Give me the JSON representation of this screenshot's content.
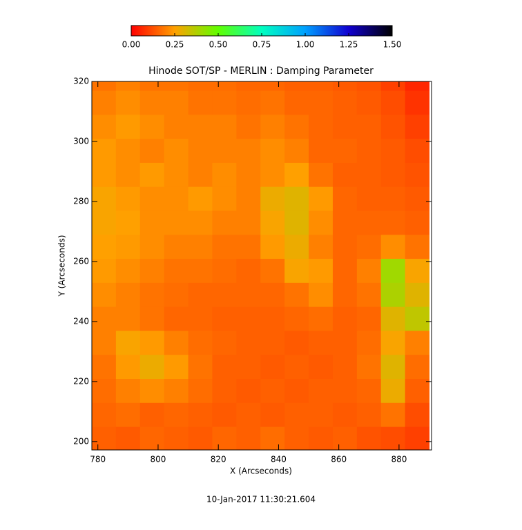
{
  "chart_data": {
    "type": "heatmap",
    "title": "Hinode SOT/SP - MERLIN : Damping Parameter",
    "xlabel": "X (Arcseconds)",
    "ylabel": "Y (Arcseconds)",
    "footer": "10-Jan-2017 11:30:21.604",
    "xlim": [
      778,
      890.8
    ],
    "ylim": [
      197.2,
      320
    ],
    "xticks": [
      780,
      800,
      820,
      840,
      860,
      880
    ],
    "yticks": [
      200,
      220,
      240,
      260,
      280,
      300,
      320
    ],
    "x": [
      782,
      790,
      798,
      806,
      814,
      822,
      830,
      838,
      846,
      854,
      862,
      870,
      878,
      886
    ],
    "y": [
      201,
      209,
      217,
      225,
      233,
      241,
      249,
      257,
      265,
      273,
      281,
      289,
      297,
      305,
      313,
      321
    ],
    "values": [
      [
        0.15,
        0.14,
        0.16,
        0.15,
        0.14,
        0.16,
        0.15,
        0.17,
        0.15,
        0.14,
        0.15,
        0.13,
        0.12,
        0.1
      ],
      [
        0.16,
        0.17,
        0.15,
        0.16,
        0.15,
        0.14,
        0.15,
        0.14,
        0.15,
        0.15,
        0.14,
        0.15,
        0.18,
        0.12
      ],
      [
        0.17,
        0.2,
        0.22,
        0.2,
        0.17,
        0.15,
        0.14,
        0.15,
        0.14,
        0.15,
        0.15,
        0.16,
        0.28,
        0.15
      ],
      [
        0.18,
        0.24,
        0.28,
        0.24,
        0.18,
        0.15,
        0.15,
        0.14,
        0.15,
        0.14,
        0.15,
        0.18,
        0.3,
        0.17
      ],
      [
        0.2,
        0.26,
        0.24,
        0.2,
        0.17,
        0.16,
        0.15,
        0.15,
        0.14,
        0.15,
        0.15,
        0.17,
        0.26,
        0.2
      ],
      [
        0.2,
        0.2,
        0.18,
        0.16,
        0.16,
        0.15,
        0.15,
        0.15,
        0.16,
        0.17,
        0.15,
        0.16,
        0.3,
        0.35
      ],
      [
        0.22,
        0.2,
        0.18,
        0.17,
        0.16,
        0.16,
        0.16,
        0.16,
        0.18,
        0.22,
        0.16,
        0.18,
        0.38,
        0.3
      ],
      [
        0.24,
        0.22,
        0.2,
        0.18,
        0.18,
        0.17,
        0.16,
        0.18,
        0.26,
        0.24,
        0.16,
        0.2,
        0.4,
        0.26
      ],
      [
        0.25,
        0.24,
        0.22,
        0.2,
        0.2,
        0.18,
        0.18,
        0.24,
        0.28,
        0.2,
        0.16,
        0.17,
        0.22,
        0.18
      ],
      [
        0.26,
        0.25,
        0.22,
        0.22,
        0.22,
        0.2,
        0.2,
        0.26,
        0.3,
        0.22,
        0.16,
        0.16,
        0.16,
        0.15
      ],
      [
        0.26,
        0.24,
        0.22,
        0.22,
        0.24,
        0.22,
        0.2,
        0.28,
        0.3,
        0.24,
        0.16,
        0.15,
        0.15,
        0.14
      ],
      [
        0.24,
        0.22,
        0.24,
        0.22,
        0.2,
        0.22,
        0.2,
        0.22,
        0.25,
        0.18,
        0.15,
        0.15,
        0.14,
        0.13
      ],
      [
        0.24,
        0.22,
        0.2,
        0.22,
        0.2,
        0.2,
        0.2,
        0.22,
        0.2,
        0.16,
        0.16,
        0.15,
        0.14,
        0.12
      ],
      [
        0.22,
        0.24,
        0.22,
        0.2,
        0.2,
        0.2,
        0.18,
        0.2,
        0.18,
        0.16,
        0.15,
        0.15,
        0.13,
        0.1
      ],
      [
        0.2,
        0.22,
        0.2,
        0.2,
        0.18,
        0.18,
        0.17,
        0.18,
        0.16,
        0.16,
        0.15,
        0.14,
        0.12,
        0.08
      ],
      [
        0.18,
        0.2,
        0.18,
        0.18,
        0.17,
        0.17,
        0.16,
        0.16,
        0.15,
        0.15,
        0.14,
        0.13,
        0.1,
        0.06
      ]
    ],
    "clim": [
      0,
      1.5
    ],
    "colormap": [
      "#ff0000",
      "#ffa000",
      "#60ff00",
      "#00ffc0",
      "#00a0ff",
      "#1000d0",
      "#000000"
    ],
    "cticks": [
      {
        "value": 0,
        "label": "0.00"
      },
      {
        "value": 0.25,
        "label": "0.25"
      },
      {
        "value": 0.5,
        "label": "0.50"
      },
      {
        "value": 0.75,
        "label": "0.75"
      },
      {
        "value": 1,
        "label": "1.00"
      },
      {
        "value": 1.25,
        "label": "1.25"
      },
      {
        "value": 1.5,
        "label": "1.50"
      }
    ]
  }
}
